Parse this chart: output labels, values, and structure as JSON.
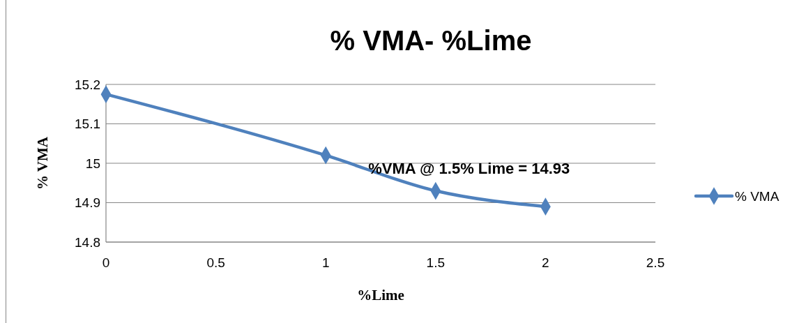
{
  "chart_data": {
    "type": "line",
    "title": "% VMA- %Lime",
    "xlabel": "%Lime",
    "ylabel": "% VMA",
    "x": [
      0,
      1,
      1.5,
      2
    ],
    "series": [
      {
        "name": "% VMA",
        "color": "#4f81bd",
        "values": [
          15.175,
          15.02,
          14.93,
          14.89
        ]
      }
    ],
    "xlim": [
      0,
      2.5
    ],
    "xticks": [
      0,
      0.5,
      1,
      1.5,
      2,
      2.5
    ],
    "ylim": [
      14.8,
      15.2
    ],
    "yticks": [
      14.8,
      14.9,
      15,
      15.1,
      15.2
    ],
    "grid": "y",
    "legend": "right",
    "marker": "diamond",
    "line_style": "solid",
    "annotations": [
      {
        "text": "%VMA @ 1.5% Lime = 14.93",
        "x": 1.5,
        "y": 14.93
      }
    ]
  }
}
